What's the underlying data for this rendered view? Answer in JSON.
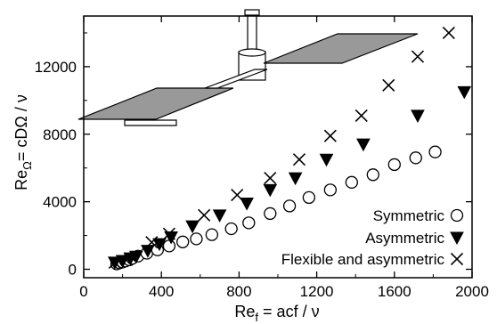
{
  "chart_data": {
    "type": "scatter",
    "xlabel": "Re_f = acf / ν",
    "ylabel": "Re_Ω = cDΩ / ν",
    "xlim": [
      0,
      2000
    ],
    "ylim": [
      -500,
      15000
    ],
    "xticks": [
      0,
      400,
      800,
      1200,
      1600,
      2000
    ],
    "xtick_labels": [
      "0",
      "400",
      "800",
      "1200",
      "1600",
      "2000"
    ],
    "yticks": [
      0,
      4000,
      8000,
      12000
    ],
    "ytick_labels": [
      "0",
      "4000",
      "8000",
      "12000"
    ],
    "grid": false,
    "legend_position": "bottom-right",
    "series": [
      {
        "name": "Symmetric",
        "marker": "open-circle",
        "color": "#000000",
        "x": [
          170,
          185,
          200,
          215,
          235,
          250,
          280,
          325,
          380,
          440,
          510,
          580,
          660,
          760,
          850,
          960,
          1060,
          1160,
          1270,
          1380,
          1490,
          1600,
          1710,
          1810
        ],
        "y": [
          320,
          380,
          430,
          490,
          560,
          650,
          780,
          950,
          1150,
          1380,
          1620,
          1800,
          2050,
          2400,
          2750,
          3300,
          3750,
          4250,
          4700,
          5150,
          5600,
          6200,
          6600,
          6950
        ]
      },
      {
        "name": "Asymmetric",
        "marker": "filled-triangle-down",
        "color": "#000000",
        "x": [
          160,
          200,
          240,
          270,
          330,
          390,
          450,
          560,
          700,
          840,
          960,
          1090,
          1250,
          1440,
          1720,
          1960
        ],
        "y": [
          400,
          500,
          650,
          750,
          1100,
          1500,
          1900,
          2550,
          3200,
          3900,
          4700,
          5400,
          6500,
          7400,
          9100,
          10500
        ]
      },
      {
        "name": "Flexible and asymmetric",
        "marker": "x",
        "color": "#000000",
        "x": [
          160,
          350,
          440,
          620,
          790,
          960,
          1110,
          1270,
          1430,
          1570,
          1720,
          1880
        ],
        "y": [
          400,
          1600,
          2100,
          3200,
          4400,
          5400,
          6500,
          7900,
          9100,
          10900,
          12600,
          14000
        ]
      }
    ]
  },
  "labels": {
    "xlabel_main": "Re",
    "xlabel_sub": "f",
    "xlabel_rest": " = acf / ν",
    "ylabel_main": "Re",
    "ylabel_sub": "Ω",
    "ylabel_rest": "= cDΩ / ν"
  }
}
